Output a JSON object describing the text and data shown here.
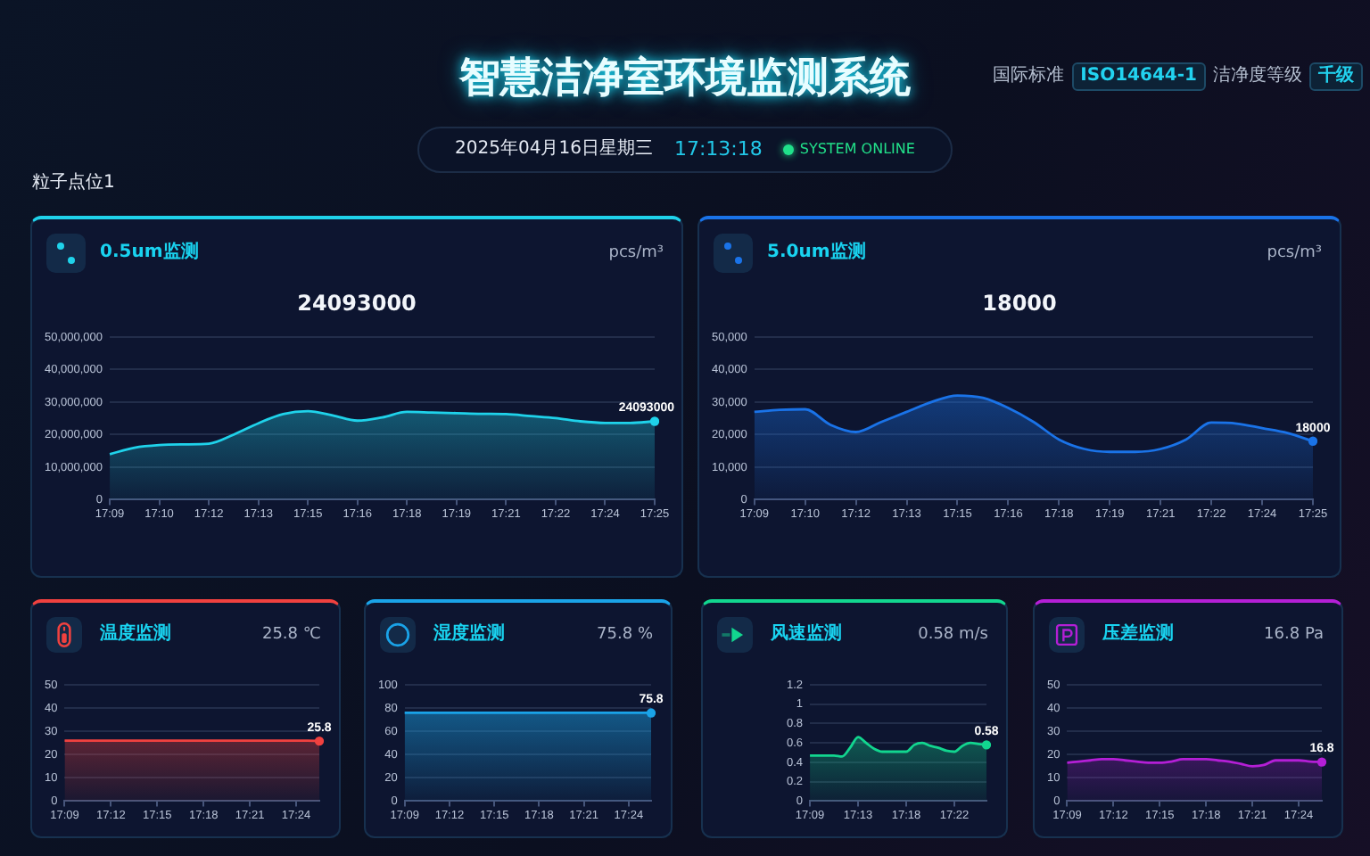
{
  "chart_data": [
    {
      "type": "other",
      "title": "智慧洁净室环境监测系统",
      "annotations": [
        "国际标准",
        "ISO14644-1",
        "洁净度等级",
        "千级",
        "2025年04月16日星期三",
        "17:13:18",
        "SYSTEM ONLINE",
        "粒子点位1"
      ]
    },
    {
      "type": "area",
      "title": "0.5um监测",
      "subtitle": "24093000",
      "annotations": [
        "pcs/m³"
      ],
      "categories": [
        "17:09",
        null,
        "17:10",
        null,
        "17:12",
        null,
        "17:13",
        null,
        "17:15",
        null,
        "17:16",
        null,
        "17:18",
        null,
        "17:19",
        null,
        "17:21",
        null,
        "17:22",
        null,
        "17:24",
        null,
        "17:25"
      ],
      "series": [
        {
          "color": "#1fd2ea",
          "values": [
            14000000,
            16000000,
            16800000,
            17000000,
            17200000,
            20000000,
            23500000,
            26300000,
            27200000,
            25900000,
            24300000,
            25300000,
            27000000,
            26800000,
            26600000,
            26400000,
            26300000,
            25700000,
            25100000,
            24100000,
            23600000,
            23600000,
            24093000
          ],
          "value_labels": [
            null,
            null,
            null,
            null,
            null,
            null,
            null,
            null,
            null,
            null,
            null,
            null,
            null,
            null,
            null,
            null,
            null,
            null,
            null,
            null,
            null,
            null,
            "24093000"
          ]
        }
      ],
      "ylim": [
        0,
        50000000
      ],
      "yticks": [
        0,
        {
          "value": 10000000,
          "label": "10,000,000"
        },
        {
          "value": 20000000,
          "label": "20,000,000"
        },
        {
          "value": 30000000,
          "label": "30,000,000"
        },
        {
          "value": 40000000,
          "label": "40,000,000"
        },
        {
          "value": 50000000,
          "label": "50,000,000"
        }
      ],
      "grid": "y"
    },
    {
      "type": "area",
      "title": "5.0um监测",
      "subtitle": "18000",
      "annotations": [
        "pcs/m³"
      ],
      "categories": [
        "17:09",
        null,
        "17:10",
        null,
        "17:12",
        null,
        "17:13",
        null,
        "17:15",
        null,
        "17:16",
        null,
        "17:18",
        null,
        "17:19",
        null,
        "17:21",
        null,
        "17:22",
        null,
        "17:24",
        null,
        "17:25"
      ],
      "series": [
        {
          "color": "#1a73e8",
          "values": [
            27000,
            27600,
            27800,
            23000,
            20800,
            23900,
            27000,
            30100,
            32000,
            31300,
            28200,
            23900,
            18500,
            15600,
            14700,
            14700,
            15600,
            18500,
            23700,
            23400,
            22000,
            20500,
            18000
          ],
          "value_labels": [
            null,
            null,
            null,
            null,
            null,
            null,
            null,
            null,
            null,
            null,
            null,
            null,
            null,
            null,
            null,
            null,
            null,
            null,
            null,
            null,
            null,
            null,
            "18000"
          ]
        }
      ],
      "ylim": [
        0,
        50000
      ],
      "yticks": [
        0,
        {
          "value": 10000,
          "label": "10,000"
        },
        {
          "value": 20000,
          "label": "20,000"
        },
        {
          "value": 30000,
          "label": "30,000"
        },
        {
          "value": 40000,
          "label": "40,000"
        },
        {
          "value": 50000,
          "label": "50,000"
        }
      ],
      "grid": "y"
    },
    {
      "type": "area",
      "title": "温度监测",
      "annotations": [
        "25.8 ℃"
      ],
      "categories": [
        "17:09",
        null,
        null,
        null,
        "17:12",
        null,
        null,
        null,
        "17:15",
        null,
        null,
        null,
        "17:18",
        null,
        null,
        null,
        "17:21",
        null,
        null,
        null,
        "17:24",
        null,
        null
      ],
      "series": [
        {
          "color": "#f0413f",
          "values": [
            26,
            26,
            26,
            26,
            26,
            26,
            26,
            26,
            26,
            26,
            26,
            26,
            26,
            26,
            26,
            26,
            26,
            26,
            26,
            26,
            26,
            26,
            25.8
          ],
          "value_labels": [
            null,
            null,
            null,
            null,
            null,
            null,
            null,
            null,
            null,
            null,
            null,
            null,
            null,
            null,
            null,
            null,
            null,
            null,
            null,
            null,
            null,
            null,
            "25.8"
          ]
        }
      ],
      "ylim": [
        0,
        50
      ],
      "yticks": [
        0,
        10,
        20,
        30,
        40,
        50
      ],
      "grid": "y"
    },
    {
      "type": "area",
      "title": "湿度监测",
      "annotations": [
        "75.8 %"
      ],
      "categories": [
        "17:09",
        null,
        null,
        null,
        "17:12",
        null,
        null,
        null,
        "17:15",
        null,
        null,
        null,
        "17:18",
        null,
        null,
        null,
        "17:21",
        null,
        null,
        null,
        "17:24",
        null,
        null
      ],
      "series": [
        {
          "color": "#1aa3e8",
          "values": [
            76,
            76,
            76,
            76,
            76,
            76,
            76,
            76,
            76,
            76,
            76,
            76,
            76,
            76,
            76,
            76,
            76,
            76,
            76,
            76,
            76,
            76,
            75.8
          ],
          "value_labels": [
            null,
            null,
            null,
            null,
            null,
            null,
            null,
            null,
            null,
            null,
            null,
            null,
            null,
            null,
            null,
            null,
            null,
            null,
            null,
            null,
            null,
            null,
            "75.8"
          ]
        }
      ],
      "ylim": [
        0,
        100
      ],
      "yticks": [
        0,
        20,
        40,
        60,
        80,
        100
      ],
      "grid": "y"
    },
    {
      "type": "area",
      "title": "风速监测",
      "annotations": [
        "0.58 m/s"
      ],
      "categories": [
        "17:09",
        null,
        null,
        null,
        null,
        null,
        "17:13",
        null,
        null,
        null,
        null,
        null,
        "17:18",
        null,
        null,
        null,
        null,
        null,
        "17:22",
        null,
        null,
        null,
        null
      ],
      "series": [
        {
          "color": "#12d68f",
          "values": [
            0.47,
            0.47,
            0.47,
            0.47,
            0.46,
            0.55,
            0.66,
            0.6,
            0.54,
            0.51,
            0.51,
            0.51,
            0.51,
            0.58,
            0.6,
            0.57,
            0.55,
            0.52,
            0.51,
            0.57,
            0.6,
            0.59,
            0.58
          ],
          "value_labels": [
            null,
            null,
            null,
            null,
            null,
            null,
            null,
            null,
            null,
            null,
            null,
            null,
            null,
            null,
            null,
            null,
            null,
            null,
            null,
            null,
            null,
            null,
            "0.58"
          ]
        }
      ],
      "ylim": [
        0,
        1.2
      ],
      "yticks": [
        0,
        0.2,
        0.4,
        0.6,
        0.8,
        1,
        1.2
      ],
      "grid": "y"
    },
    {
      "type": "area",
      "title": "压差监测",
      "annotations": [
        "16.8 Pa"
      ],
      "categories": [
        "17:09",
        null,
        null,
        null,
        "17:12",
        null,
        null,
        null,
        "17:15",
        null,
        null,
        null,
        "17:18",
        null,
        null,
        null,
        "17:21",
        null,
        null,
        null,
        "17:24",
        null,
        null
      ],
      "series": [
        {
          "color": "#b41fd6",
          "values": [
            16.5,
            17,
            17.5,
            18,
            18,
            17.5,
            17,
            16.5,
            16.5,
            17,
            18,
            18,
            18,
            17.5,
            17,
            16,
            15,
            15.5,
            17.5,
            17.5,
            17.5,
            17,
            16.8
          ],
          "value_labels": [
            null,
            null,
            null,
            null,
            null,
            null,
            null,
            null,
            null,
            null,
            null,
            null,
            null,
            null,
            null,
            null,
            null,
            null,
            null,
            null,
            null,
            null,
            "16.8"
          ]
        }
      ],
      "ylim": [
        0,
        50
      ],
      "yticks": [
        0,
        10,
        20,
        30,
        40,
        50
      ],
      "grid": "y"
    }
  ]
}
